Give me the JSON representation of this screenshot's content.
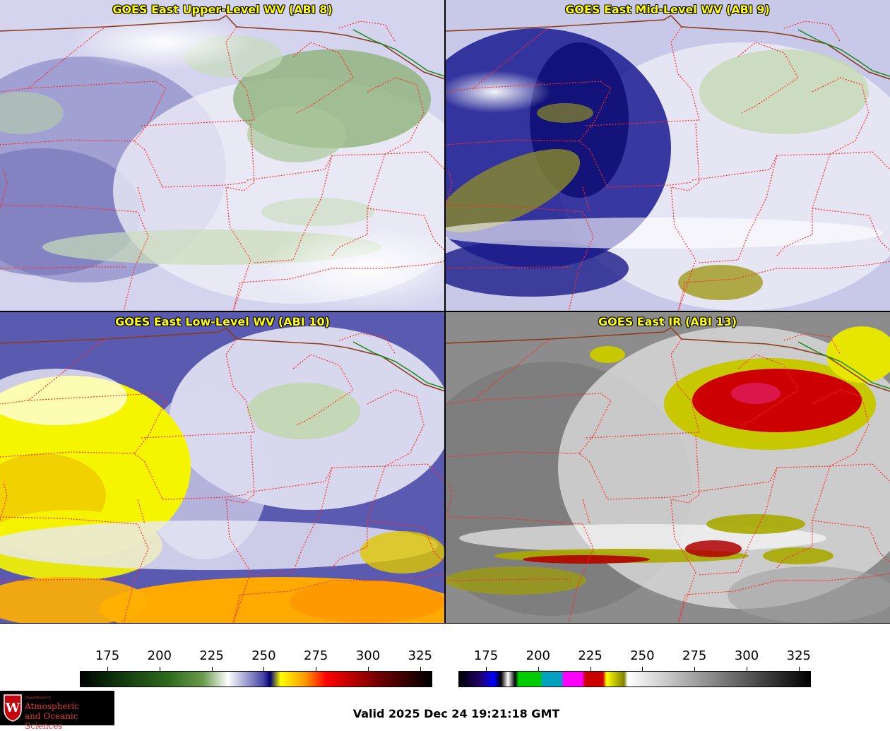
{
  "panels": [
    {
      "title": "GOES East Upper-Level WV (ABI 8)"
    },
    {
      "title": "GOES East Mid-Level WV (ABI 9)"
    },
    {
      "title": "GOES East Low-Level WV (ABI 10)"
    },
    {
      "title": "GOES East IR (ABI 13)"
    }
  ],
  "colorbar_wv": {
    "ticks": [
      "175",
      "200",
      "225",
      "250",
      "275",
      "300",
      "325"
    ]
  },
  "colorbar_ir": {
    "ticks": [
      "175",
      "200",
      "225",
      "250",
      "275",
      "300",
      "325"
    ]
  },
  "logo": {
    "line0": "Department of",
    "line1": "Atmospheric",
    "line2": "and Oceanic Sciences",
    "seal_text": "W"
  },
  "footer": {
    "valid": "Valid 2025 Dec 24 19:21:18 GMT"
  },
  "colors": {
    "border_state": "#ff2a2a",
    "border_country": "#8b3a1a",
    "coast": "#1a8a1a",
    "title": "#ffff00"
  }
}
